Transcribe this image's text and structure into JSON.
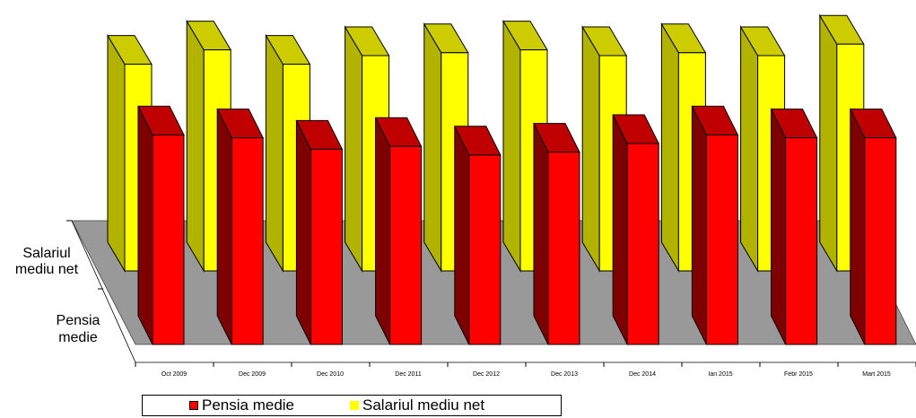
{
  "chart_data": {
    "type": "bar",
    "categories": [
      "Oct 2009",
      "Dec 2009",
      "Dec 2010",
      "Dec 2011",
      "Dec 2012",
      "Dec 2013",
      "Dec 2014",
      "Ian 2015",
      "Febr 2015",
      "Mart 2015"
    ],
    "series": [
      {
        "name": "Pensia medie",
        "values": [
          73,
          72,
          68,
          69,
          66,
          67,
          70,
          73,
          72,
          72
        ]
      },
      {
        "name": "Salariul mediu net",
        "values": [
          72,
          77,
          72,
          75,
          76,
          77,
          75,
          76,
          75,
          79
        ]
      }
    ],
    "depth_labels": [
      "Salariul mediu net",
      "Pensia medie"
    ],
    "ylim": [
      0,
      100
    ],
    "colors": {
      "Pensia medie": "#ff0000",
      "Salariul mediu net": "#ffff00"
    },
    "legend_position": "bottom"
  },
  "legend": {
    "items": [
      "Pensia medie",
      "Salariul mediu net"
    ]
  }
}
